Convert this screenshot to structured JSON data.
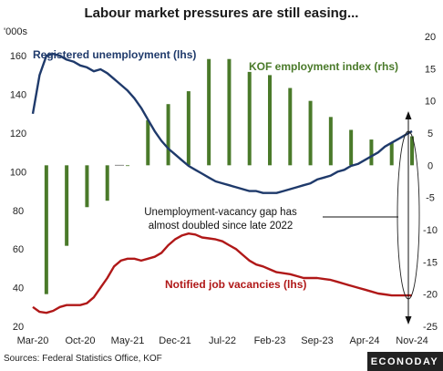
{
  "chart_data": {
    "type": "line",
    "title": "Labour market pressures are still easing...",
    "left_axis": {
      "unit": "'000s",
      "ylim": [
        20,
        170
      ],
      "ticks": [
        20,
        40,
        60,
        80,
        100,
        120,
        140,
        160
      ]
    },
    "right_axis": {
      "ylim": [
        -25,
        20
      ],
      "ticks": [
        -25,
        -20,
        -15,
        -10,
        -5,
        0,
        5,
        10,
        15,
        20
      ]
    },
    "x_ticks": [
      "Mar-20",
      "Oct-20",
      "May-21",
      "Dec-21",
      "Jul-22",
      "Feb-23",
      "Sep-23",
      "Apr-24",
      "Nov-24"
    ],
    "x_tick_months": [
      0,
      7,
      14,
      21,
      28,
      35,
      42,
      49,
      56
    ],
    "grid": false,
    "series": [
      {
        "name": "Registered unemployment (lhs)",
        "axis": "left",
        "color": "#1f3a6b",
        "x": [
          0,
          1,
          2,
          3,
          4,
          5,
          6,
          7,
          8,
          9,
          10,
          11,
          12,
          13,
          14,
          15,
          16,
          17,
          18,
          19,
          20,
          21,
          22,
          23,
          24,
          25,
          26,
          27,
          28,
          29,
          30,
          31,
          32,
          33,
          34,
          35,
          36,
          37,
          38,
          39,
          40,
          41,
          42,
          43,
          44,
          45,
          46,
          47,
          48,
          49,
          50,
          51,
          52,
          53,
          54,
          55,
          56
        ],
        "y": [
          130,
          150,
          160,
          161,
          160,
          158,
          157,
          155,
          154,
          152,
          153,
          151,
          148,
          145,
          142,
          138,
          133,
          127,
          121,
          116,
          112,
          109,
          106,
          103,
          101,
          99,
          97,
          95,
          94,
          93,
          92,
          91,
          90,
          90,
          89,
          89,
          89,
          90,
          91,
          92,
          93,
          94,
          96,
          97,
          98,
          100,
          101,
          103,
          104,
          106,
          108,
          110,
          113,
          115,
          117,
          119,
          121
        ]
      },
      {
        "name": "KOF employment index (rhs)",
        "axis": "right",
        "color": "#4a7a2a",
        "type": "bar",
        "x": [
          2,
          5,
          8,
          11,
          14,
          17,
          20,
          23,
          26,
          29,
          32,
          35,
          38,
          41,
          44,
          47,
          50,
          53,
          56
        ],
        "y": [
          -20,
          -12.5,
          -6.5,
          -5.5,
          0,
          7,
          9.5,
          11.5,
          16.5,
          16.5,
          14.5,
          14,
          12,
          10,
          7.5,
          5.5,
          4,
          3.5,
          4.5
        ]
      },
      {
        "name": "Notified job vacancies (lhs)",
        "axis": "left",
        "color": "#b01818",
        "x": [
          0,
          1,
          2,
          3,
          4,
          5,
          6,
          7,
          8,
          9,
          10,
          11,
          12,
          13,
          14,
          15,
          16,
          17,
          18,
          19,
          20,
          21,
          22,
          23,
          24,
          25,
          26,
          27,
          28,
          29,
          30,
          31,
          32,
          33,
          34,
          35,
          36,
          37,
          38,
          39,
          40,
          41,
          42,
          43,
          44,
          45,
          46,
          47,
          48,
          49,
          50,
          51,
          52,
          53,
          54,
          55,
          56
        ],
        "y": [
          30,
          27.5,
          27,
          28,
          30,
          31,
          31,
          31,
          32,
          35,
          40,
          45,
          51,
          54,
          55,
          55,
          54,
          55,
          56,
          58,
          62,
          65,
          67,
          68,
          67.5,
          66,
          65.5,
          65,
          64,
          62,
          60,
          57,
          54,
          52,
          51,
          49.5,
          48,
          47.5,
          47,
          46,
          45,
          45,
          45,
          44.5,
          44,
          43,
          42,
          41,
          40,
          39,
          38,
          37,
          36.5,
          36,
          36,
          36,
          36
        ]
      }
    ],
    "annotation": {
      "line1": "Unemployment-vacancy gap has",
      "line2": "almost doubled since late 2022"
    }
  },
  "source_note": "Sources: Federal Statistics Office, KOF",
  "brand": "ECONODAY"
}
